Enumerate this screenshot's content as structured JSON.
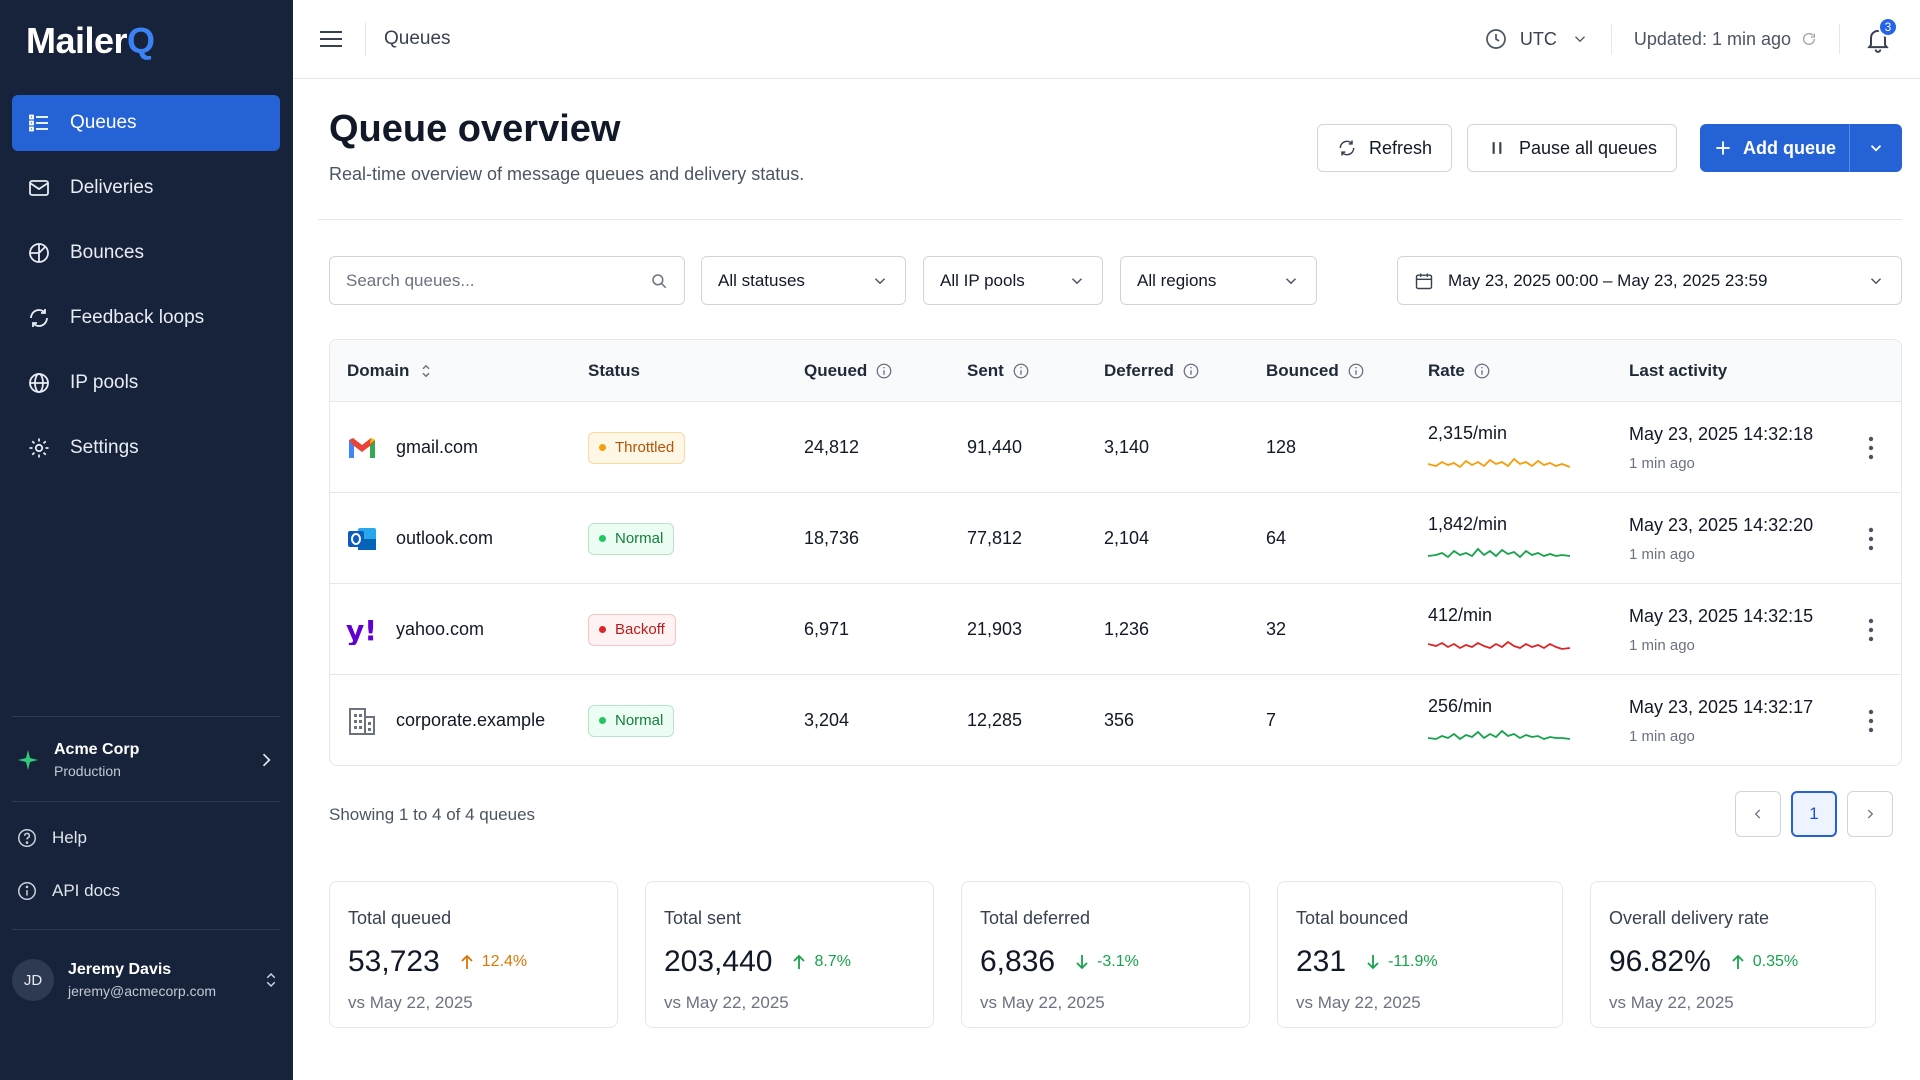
{
  "app": {
    "logo_main": "Mailer",
    "logo_q": "Q",
    "accent": "#2462d6"
  },
  "sidebar": {
    "items": [
      {
        "label": "Queues",
        "icon": "list-icon",
        "active": true
      },
      {
        "label": "Deliveries",
        "icon": "envelope-icon"
      },
      {
        "label": "Bounces",
        "icon": "bounce-icon"
      },
      {
        "label": "Feedback loops",
        "icon": "refresh-icon"
      },
      {
        "label": "IP pools",
        "icon": "globe-icon"
      },
      {
        "label": "Settings",
        "icon": "gear-icon"
      }
    ],
    "org": {
      "name": "Acme Corp",
      "env": "Production"
    },
    "links": [
      {
        "label": "Help",
        "icon": "help-circle-icon"
      },
      {
        "label": "API docs",
        "icon": "info-circle-icon"
      }
    ],
    "user": {
      "initials": "JD",
      "name": "Jeremy Davis",
      "email": "jeremy@acmecorp.com"
    }
  },
  "topbar": {
    "breadcrumb": "Queues",
    "timezone": "UTC",
    "updated": "Updated: 1 min ago",
    "notifications": "3"
  },
  "header": {
    "title": "Queue overview",
    "subtitle": "Real-time overview of message queues and delivery status.",
    "refresh_label": "Refresh",
    "pause_label": "Pause all queues",
    "add_label": "Add queue"
  },
  "filters": {
    "search_placeholder": "Search queues...",
    "status": "All statuses",
    "ip_pool": "All IP pools",
    "region": "All regions",
    "date_range": "May 23, 2025 00:00 – May 23, 2025 23:59"
  },
  "table": {
    "columns": [
      "Domain",
      "Status",
      "Queued",
      "Sent",
      "Deferred",
      "Bounced",
      "Rate",
      "Last activity"
    ],
    "rows": [
      {
        "domain": "gmail.com",
        "icon": "gmail-icon",
        "status": "Throttled",
        "queued": "24,812",
        "sent": "91,440",
        "deferred": "3,140",
        "bounced": "128",
        "rate": "2,315/min",
        "spark_color": "#f59e0b",
        "last_date": "May 23, 2025 14:32:18",
        "last_rel": "1 min ago"
      },
      {
        "domain": "outlook.com",
        "icon": "outlook-icon",
        "status": "Normal",
        "queued": "18,736",
        "sent": "77,812",
        "deferred": "2,104",
        "bounced": "64",
        "rate": "1,842/min",
        "spark_color": "#16a34a",
        "last_date": "May 23, 2025 14:32:20",
        "last_rel": "1 min ago"
      },
      {
        "domain": "yahoo.com",
        "icon": "yahoo-icon",
        "status": "Backoff",
        "queued": "6,971",
        "sent": "21,903",
        "deferred": "1,236",
        "bounced": "32",
        "rate": "412/min",
        "spark_color": "#dc2626",
        "last_date": "May 23, 2025 14:32:15",
        "last_rel": "1 min ago"
      },
      {
        "domain": "corporate.example",
        "icon": "building-icon",
        "status": "Normal",
        "queued": "3,204",
        "sent": "12,285",
        "deferred": "356",
        "bounced": "7",
        "rate": "256/min",
        "spark_color": "#16a34a",
        "last_date": "May 23, 2025 14:32:17",
        "last_rel": "1 min ago"
      }
    ]
  },
  "pagination": {
    "showing": "Showing 1 to 4 of 4 queues",
    "current": "1"
  },
  "summary": [
    {
      "label": "Total queued",
      "value": "53,723",
      "delta": "12.4%",
      "direction": "up",
      "color": "#d97706",
      "vs": "vs May 22, 2025"
    },
    {
      "label": "Total sent",
      "value": "203,440",
      "delta": "8.7%",
      "direction": "up",
      "color": "#16a34a",
      "vs": "vs May 22, 2025"
    },
    {
      "label": "Total deferred",
      "value": "6,836",
      "delta": "-3.1%",
      "direction": "down",
      "color": "#16a34a",
      "vs": "vs May 22, 2025"
    },
    {
      "label": "Total bounced",
      "value": "231",
      "delta": "-11.9%",
      "direction": "down",
      "color": "#16a34a",
      "vs": "vs May 22, 2025"
    },
    {
      "label": "Overall delivery rate",
      "value": "96.82%",
      "delta": "0.35%",
      "direction": "up",
      "color": "#16a34a",
      "vs": "vs May 22, 2025"
    }
  ]
}
